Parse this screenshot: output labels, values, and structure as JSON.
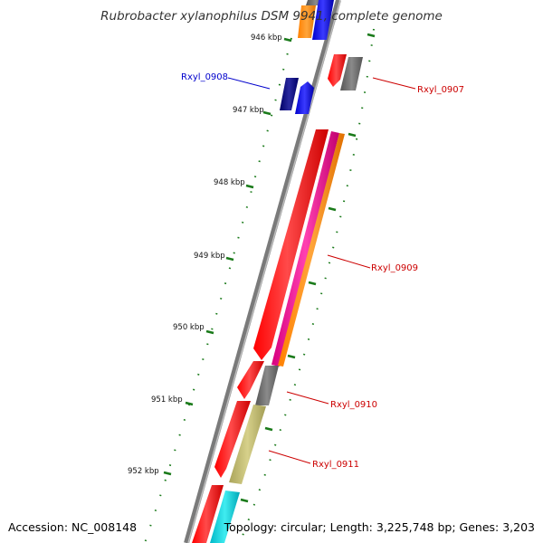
{
  "title": "Rubrobacter xylanophilus DSM 9941, complete genome",
  "footer": {
    "accession": "Accession: NC_008148",
    "topology": "Topology: circular; Length: 3,225,748 bp; Genes: 3,203"
  },
  "ticks": [
    "946 kbp",
    "947 kbp",
    "948 kbp",
    "949 kbp",
    "950 kbp",
    "951 kbp",
    "952 kbp"
  ],
  "gene_labels": {
    "rxyl_0907": "Rxyl_0907",
    "rxyl_0908": "Rxyl_0908",
    "rxyl_0909": "Rxyl_0909",
    "rxyl_0910": "Rxyl_0910",
    "rxyl_0911": "Rxyl_0911"
  },
  "colors": {
    "forward_label": "#cc0000",
    "reverse_label": "#0000cc",
    "backbone": "#808080",
    "tick": "#1a7a1a",
    "gene_red": "#ff0000",
    "gene_orange": "#ff8c00",
    "gene_magenta": "#e8139a",
    "gene_gray": "#666666",
    "gene_khaki": "#bdb76b",
    "gene_cyan": "#00cfd8",
    "gene_blue": "#0000ff",
    "gene_navy": "#000080"
  }
}
